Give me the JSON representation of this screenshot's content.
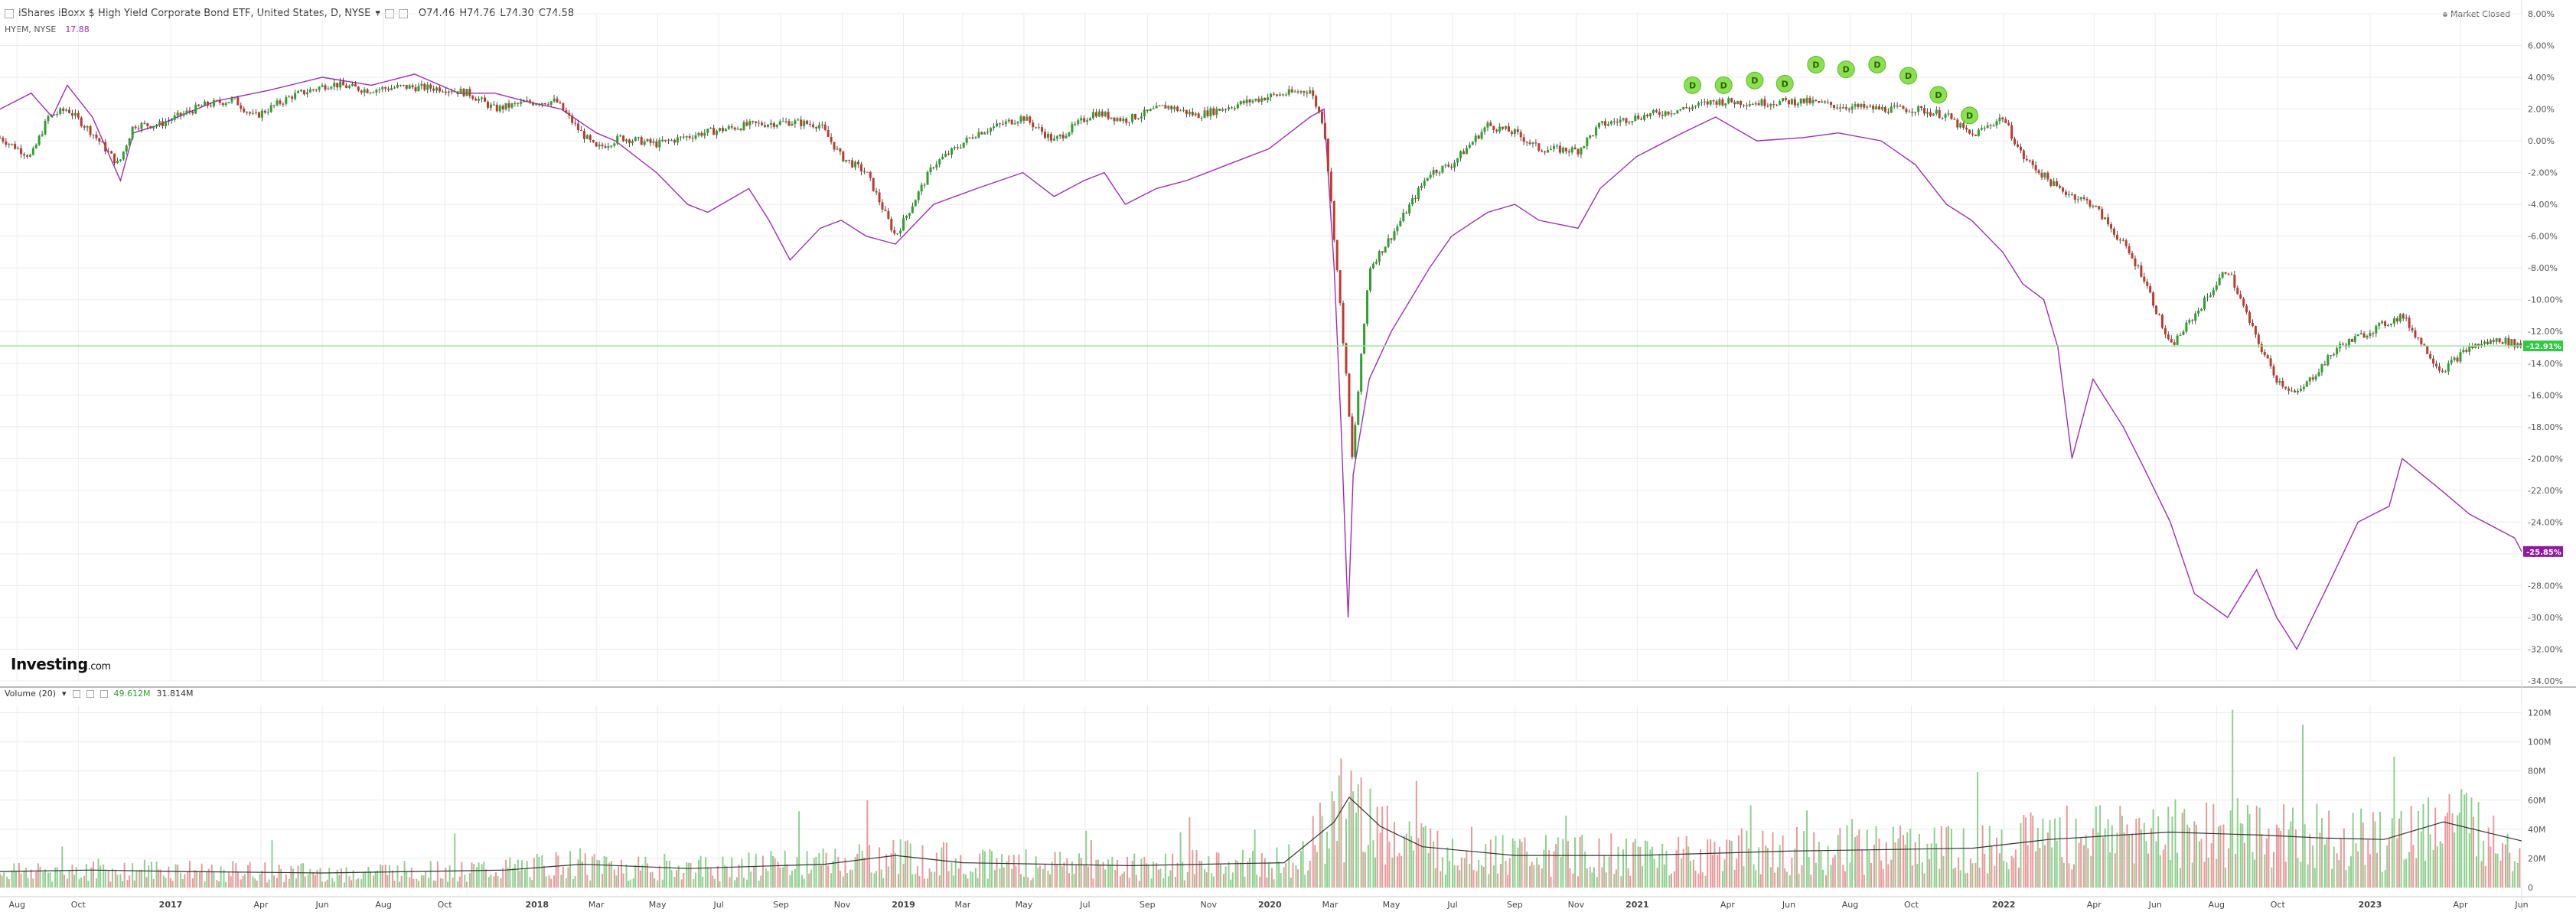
{
  "header": {
    "title": "iShares iBoxx $ High Yield Corporate Bond ETF, United States, D, NYSE",
    "open": "O74.46",
    "high": "H74.76",
    "low": "L74.30",
    "close": "C74.58",
    "compare_symbol": "HYEM, NYSE",
    "compare_value": "17.88",
    "market_status": "Market Closed"
  },
  "volume_legend": {
    "label": "Volume (20)",
    "value": "49.612M",
    "ma": "31.814M"
  },
  "logo": {
    "main": "Investing",
    "suffix": ".com"
  },
  "colors": {
    "up": "#2aa32a",
    "down": "#c0392b",
    "compare": "#a12bb5",
    "grid": "#ececec",
    "last_line": "#9be39b",
    "vol_up": "#8fd08f",
    "vol_down": "#e79a9a"
  },
  "chart_data": [
    {
      "type": "line",
      "title": "iShares iBoxx $ High Yield Corporate Bond ETF, United States, D, NYSE",
      "ylabel": "",
      "ylim": [
        -34,
        8
      ],
      "y_unit": "%",
      "yticks": [
        "8.00%",
        "6.00%",
        "4.00%",
        "2.00%",
        "0.00%",
        "-2.00%",
        "-4.00%",
        "-6.00%",
        "-8.00%",
        "-10.00%",
        "-12.00%",
        "-14.00%",
        "-16.00%",
        "-18.00%",
        "-20.00%",
        "-22.00%",
        "-24.00%",
        "-26.00%",
        "-28.00%",
        "-30.00%",
        "-32.00%",
        "-34.00%"
      ],
      "xticks": [
        "Aug",
        "Oct",
        "2017",
        "Apr",
        "Jun",
        "Aug",
        "Oct",
        "2018",
        "Mar",
        "May",
        "Jul",
        "Sep",
        "Nov",
        "2019",
        "Mar",
        "May",
        "Jul",
        "Sep",
        "Nov",
        "2020",
        "Mar",
        "May",
        "Jul",
        "Sep",
        "Nov",
        "2021",
        "Apr",
        "Jun",
        "Aug",
        "Oct",
        "2022",
        "Apr",
        "Jun",
        "Aug",
        "Oct",
        "2023",
        "Apr",
        "Jun"
      ],
      "xrange": [
        "2016-07-15",
        "2023-06-01"
      ],
      "last_labels": {
        "hyg": "-12.91%",
        "hyem": "-25.85%"
      },
      "series": [
        {
          "name": "iShares iBoxx $ High Yield Corporate Bond ETF",
          "style": "candles",
          "x": [
            "2016-07-15",
            "2016-08-15",
            "2016-09-01",
            "2016-09-20",
            "2016-10-15",
            "2016-11-10",
            "2016-11-25",
            "2016-12-20",
            "2017-02-01",
            "2017-03-05",
            "2017-03-25",
            "2017-05-01",
            "2017-06-10",
            "2017-07-15",
            "2017-08-20",
            "2017-09-30",
            "2017-10-25",
            "2017-11-20",
            "2017-12-20",
            "2018-01-20",
            "2018-02-10",
            "2018-03-01",
            "2018-03-25",
            "2018-04-30",
            "2018-06-15",
            "2018-07-31",
            "2018-09-10",
            "2018-10-10",
            "2018-10-31",
            "2018-11-25",
            "2018-12-24",
            "2019-01-31",
            "2019-03-15",
            "2019-04-30",
            "2019-05-31",
            "2019-07-10",
            "2019-08-10",
            "2019-09-20",
            "2019-10-20",
            "2019-11-30",
            "2019-12-31",
            "2020-02-10",
            "2020-02-24",
            "2020-03-05",
            "2020-03-16",
            "2020-03-23",
            "2020-04-09",
            "2020-05-01",
            "2020-06-08",
            "2020-06-30",
            "2020-08-05",
            "2020-09-01",
            "2020-09-25",
            "2020-11-03",
            "2020-11-25",
            "2020-12-31",
            "2021-02-15",
            "2021-03-20",
            "2021-04-30",
            "2021-06-15",
            "2021-07-20",
            "2021-09-01",
            "2021-10-05",
            "2021-11-05",
            "2021-11-30",
            "2021-12-31",
            "2022-01-20",
            "2022-02-24",
            "2022-03-31",
            "2022-04-30",
            "2022-05-20",
            "2022-06-16",
            "2022-07-10",
            "2022-08-12",
            "2022-09-10",
            "2022-09-30",
            "2022-10-20",
            "2022-11-30",
            "2022-12-31",
            "2023-02-02",
            "2023-03-13",
            "2023-04-10",
            "2023-05-10",
            "2023-06-01"
          ],
          "values": [
            0.2,
            -1.0,
            1.5,
            2.0,
            0.5,
            -1.5,
            1.0,
            1.0,
            2.2,
            2.6,
            1.5,
            2.8,
            3.6,
            3.2,
            3.4,
            3.3,
            3.0,
            2.0,
            2.4,
            2.5,
            0.8,
            -0.5,
            0.2,
            -0.2,
            0.5,
            1.0,
            1.2,
            1.0,
            -1.0,
            -2.0,
            -6.0,
            -1.5,
            0.5,
            1.5,
            0.0,
            1.8,
            1.3,
            2.2,
            1.6,
            2.3,
            2.8,
            3.2,
            1.0,
            -6.0,
            -14.0,
            -20.0,
            -8.0,
            -6.0,
            -2.0,
            -1.5,
            1.0,
            0.5,
            -0.5,
            -0.6,
            1.0,
            1.5,
            2.0,
            2.5,
            2.4,
            2.5,
            2.2,
            2.0,
            2.0,
            1.6,
            0.3,
            1.5,
            -1.0,
            -3.0,
            -4.0,
            -6.5,
            -8.5,
            -13.0,
            -11.0,
            -8.0,
            -12.5,
            -15.0,
            -16.0,
            -13.0,
            -12.0,
            -11.0,
            -14.5,
            -13.0,
            -12.5,
            -12.9
          ]
        },
        {
          "name": "HYEM, NYSE",
          "style": "line",
          "x": [
            "2016-07-15",
            "2016-08-15",
            "2016-09-05",
            "2016-09-20",
            "2016-10-15",
            "2016-11-12",
            "2016-11-25",
            "2016-12-20",
            "2017-02-15",
            "2017-04-10",
            "2017-06-01",
            "2017-07-20",
            "2017-09-01",
            "2017-10-15",
            "2017-11-20",
            "2017-12-20",
            "2018-01-25",
            "2018-03-01",
            "2018-03-20",
            "2018-04-30",
            "2018-05-31",
            "2018-06-20",
            "2018-07-31",
            "2018-08-20",
            "2018-09-10",
            "2018-10-10",
            "2018-10-31",
            "2018-11-25",
            "2018-12-24",
            "2019-01-31",
            "2019-03-15",
            "2019-04-30",
            "2019-05-31",
            "2019-06-30",
            "2019-07-20",
            "2019-08-10",
            "2019-09-10",
            "2019-10-10",
            "2019-11-20",
            "2019-12-31",
            "2020-02-10",
            "2020-02-24",
            "2020-03-05",
            "2020-03-12",
            "2020-03-19",
            "2020-03-24",
            "2020-04-09",
            "2020-05-01",
            "2020-06-08",
            "2020-06-30",
            "2020-08-05",
            "2020-09-01",
            "2020-09-25",
            "2020-11-03",
            "2020-11-25",
            "2020-12-31",
            "2021-02-15",
            "2021-03-20",
            "2021-04-30",
            "2021-06-15",
            "2021-07-20",
            "2021-09-01",
            "2021-10-05",
            "2021-11-05",
            "2021-11-30",
            "2021-12-31",
            "2022-01-20",
            "2022-02-10",
            "2022-02-24",
            "2022-03-10",
            "2022-03-31",
            "2022-04-30",
            "2022-05-20",
            "2022-06-16",
            "2022-07-10",
            "2022-08-12",
            "2022-09-10",
            "2022-09-30",
            "2022-10-20",
            "2022-11-20",
            "2022-12-20",
            "2023-01-20",
            "2023-02-02",
            "2023-03-13",
            "2023-04-10",
            "2023-05-10",
            "2023-05-25",
            "2023-06-01"
          ],
          "values": [
            2.0,
            3.0,
            1.5,
            3.5,
            1.5,
            -2.5,
            0.5,
            1.0,
            2.5,
            3.2,
            4.0,
            3.5,
            4.2,
            3.0,
            3.0,
            2.5,
            2.0,
            0.5,
            0.0,
            -2.0,
            -4.0,
            -4.5,
            -3.0,
            -5.0,
            -7.5,
            -5.5,
            -5.0,
            -6.0,
            -6.5,
            -4.0,
            -3.0,
            -2.0,
            -3.5,
            -2.5,
            -2.0,
            -4.0,
            -3.0,
            -2.5,
            -1.5,
            -0.5,
            1.5,
            2.0,
            -8.0,
            -18.0,
            -30.0,
            -21.0,
            -15.0,
            -12.0,
            -8.0,
            -6.0,
            -4.5,
            -4.0,
            -5.0,
            -5.5,
            -3.0,
            -1.0,
            0.5,
            1.5,
            0.0,
            0.2,
            0.5,
            0.0,
            -1.5,
            -4.0,
            -5.0,
            -7.0,
            -9.0,
            -10.0,
            -13.0,
            -20.0,
            -15.0,
            -18.0,
            -20.5,
            -24.0,
            -28.5,
            -30.0,
            -27.0,
            -30.0,
            -32.0,
            -28.0,
            -24.0,
            -23.0,
            -20.0,
            -22.0,
            -23.5,
            -24.5,
            -25.0,
            -25.85
          ]
        }
      ]
    },
    {
      "type": "bar",
      "title": "Volume (20)",
      "ylim": [
        0,
        125
      ],
      "y_unit": "M",
      "yticks": [
        "120M",
        "100M",
        "80M",
        "60M",
        "40M",
        "20M",
        "0"
      ],
      "ma_x": [
        "2016-07-15",
        "2016-10-15",
        "2017-01-15",
        "2017-06-01",
        "2017-12-01",
        "2018-02-15",
        "2018-06-01",
        "2018-10-15",
        "2018-12-24",
        "2019-03-01",
        "2019-08-15",
        "2020-01-15",
        "2020-03-05",
        "2020-03-20",
        "2020-04-20",
        "2020-06-01",
        "2020-09-01",
        "2020-12-31",
        "2021-06-01",
        "2021-12-01",
        "2022-02-15",
        "2022-06-15",
        "2022-09-15",
        "2022-11-15",
        "2023-01-15",
        "2023-03-15",
        "2023-06-01"
      ],
      "ma_values": [
        11,
        12,
        11,
        10,
        12,
        16,
        13,
        16,
        22,
        17,
        15,
        17,
        45,
        62,
        42,
        28,
        22,
        22,
        25,
        27,
        33,
        38,
        36,
        34,
        33,
        45,
        32
      ]
    }
  ],
  "dividend_markers": {
    "label": "D",
    "x": [
      "2021-02-25",
      "2021-03-28",
      "2021-04-28",
      "2021-05-28",
      "2021-06-28",
      "2021-07-28",
      "2021-08-28",
      "2021-09-28",
      "2021-10-28",
      "2021-11-28"
    ],
    "values": [
      3.5,
      3.5,
      3.8,
      3.6,
      4.8,
      4.5,
      4.8,
      4.1,
      2.9,
      1.6
    ]
  }
}
